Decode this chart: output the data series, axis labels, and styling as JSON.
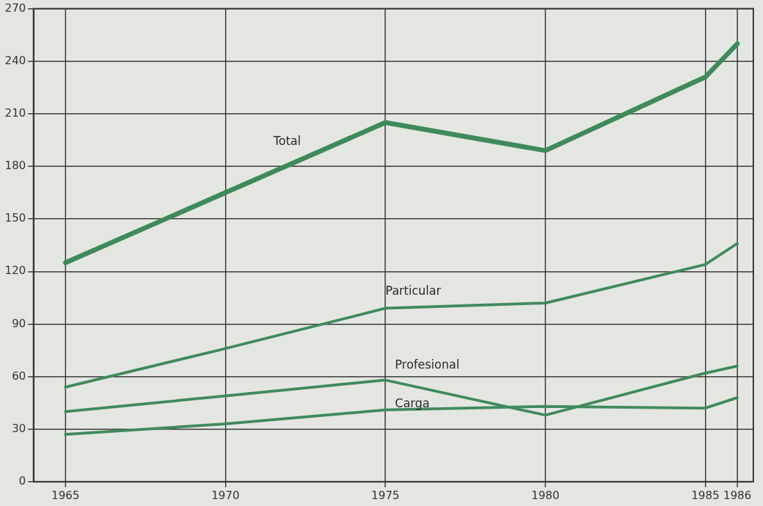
{
  "chart_data": {
    "type": "line",
    "x": [
      1965,
      1970,
      1975,
      1980,
      1985,
      1986
    ],
    "series": [
      {
        "name": "Total",
        "color": "#3f8a5c",
        "values": [
          125,
          165,
          205,
          189,
          231,
          250
        ]
      },
      {
        "name": "Particular",
        "color": "#3f8a5c",
        "values": [
          54,
          76,
          99,
          102,
          124,
          136
        ]
      },
      {
        "name": "Profesional",
        "color": "#3f8a5c",
        "values": [
          40,
          49,
          58,
          38,
          62,
          66
        ]
      },
      {
        "name": "Carga",
        "color": "#3f8a5c",
        "values": [
          27,
          33,
          41,
          43,
          42,
          48
        ]
      }
    ],
    "xlim": [
      1964,
      1986.5
    ],
    "xticks": [
      1965,
      1970,
      1975,
      1980,
      1985,
      1986
    ],
    "ylim": [
      0,
      270
    ],
    "yticks": [
      0,
      30,
      60,
      90,
      120,
      150,
      180,
      210,
      240,
      270
    ],
    "grid": true,
    "legend": false,
    "marker": "none",
    "line_style": "solid"
  }
}
